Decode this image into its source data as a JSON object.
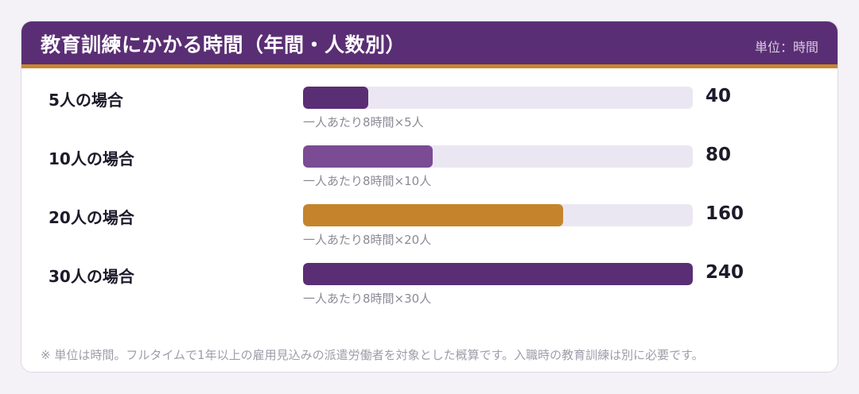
{
  "header": {
    "title": "教育訓練にかかる時間（年間・人数別）",
    "unit": "単位：時間"
  },
  "chart_data": {
    "type": "bar",
    "orientation": "horizontal",
    "categories": [
      "5人の場合",
      "10人の場合",
      "20人の場合",
      "30人の場合"
    ],
    "values": [
      40,
      80,
      160,
      240
    ],
    "value_labels": [
      "40",
      "80",
      "160",
      "240"
    ],
    "sublabels": [
      "一人あたり8時間×5人",
      "一人あたり8時間×10人",
      "一人あたり8時間×20人",
      "一人あたり8時間×30人"
    ],
    "xlim": [
      0,
      240
    ],
    "colors": [
      "#5a2e74",
      "#7b4b93",
      "#c5842c",
      "#5a2e74"
    ],
    "track_color": "#ebe7f2"
  },
  "note": "※ 単位は時間。フルタイムで1年以上の雇用見込みの派遣労働者を対象とした概算です。入職時の教育訓練は別に必要です。"
}
